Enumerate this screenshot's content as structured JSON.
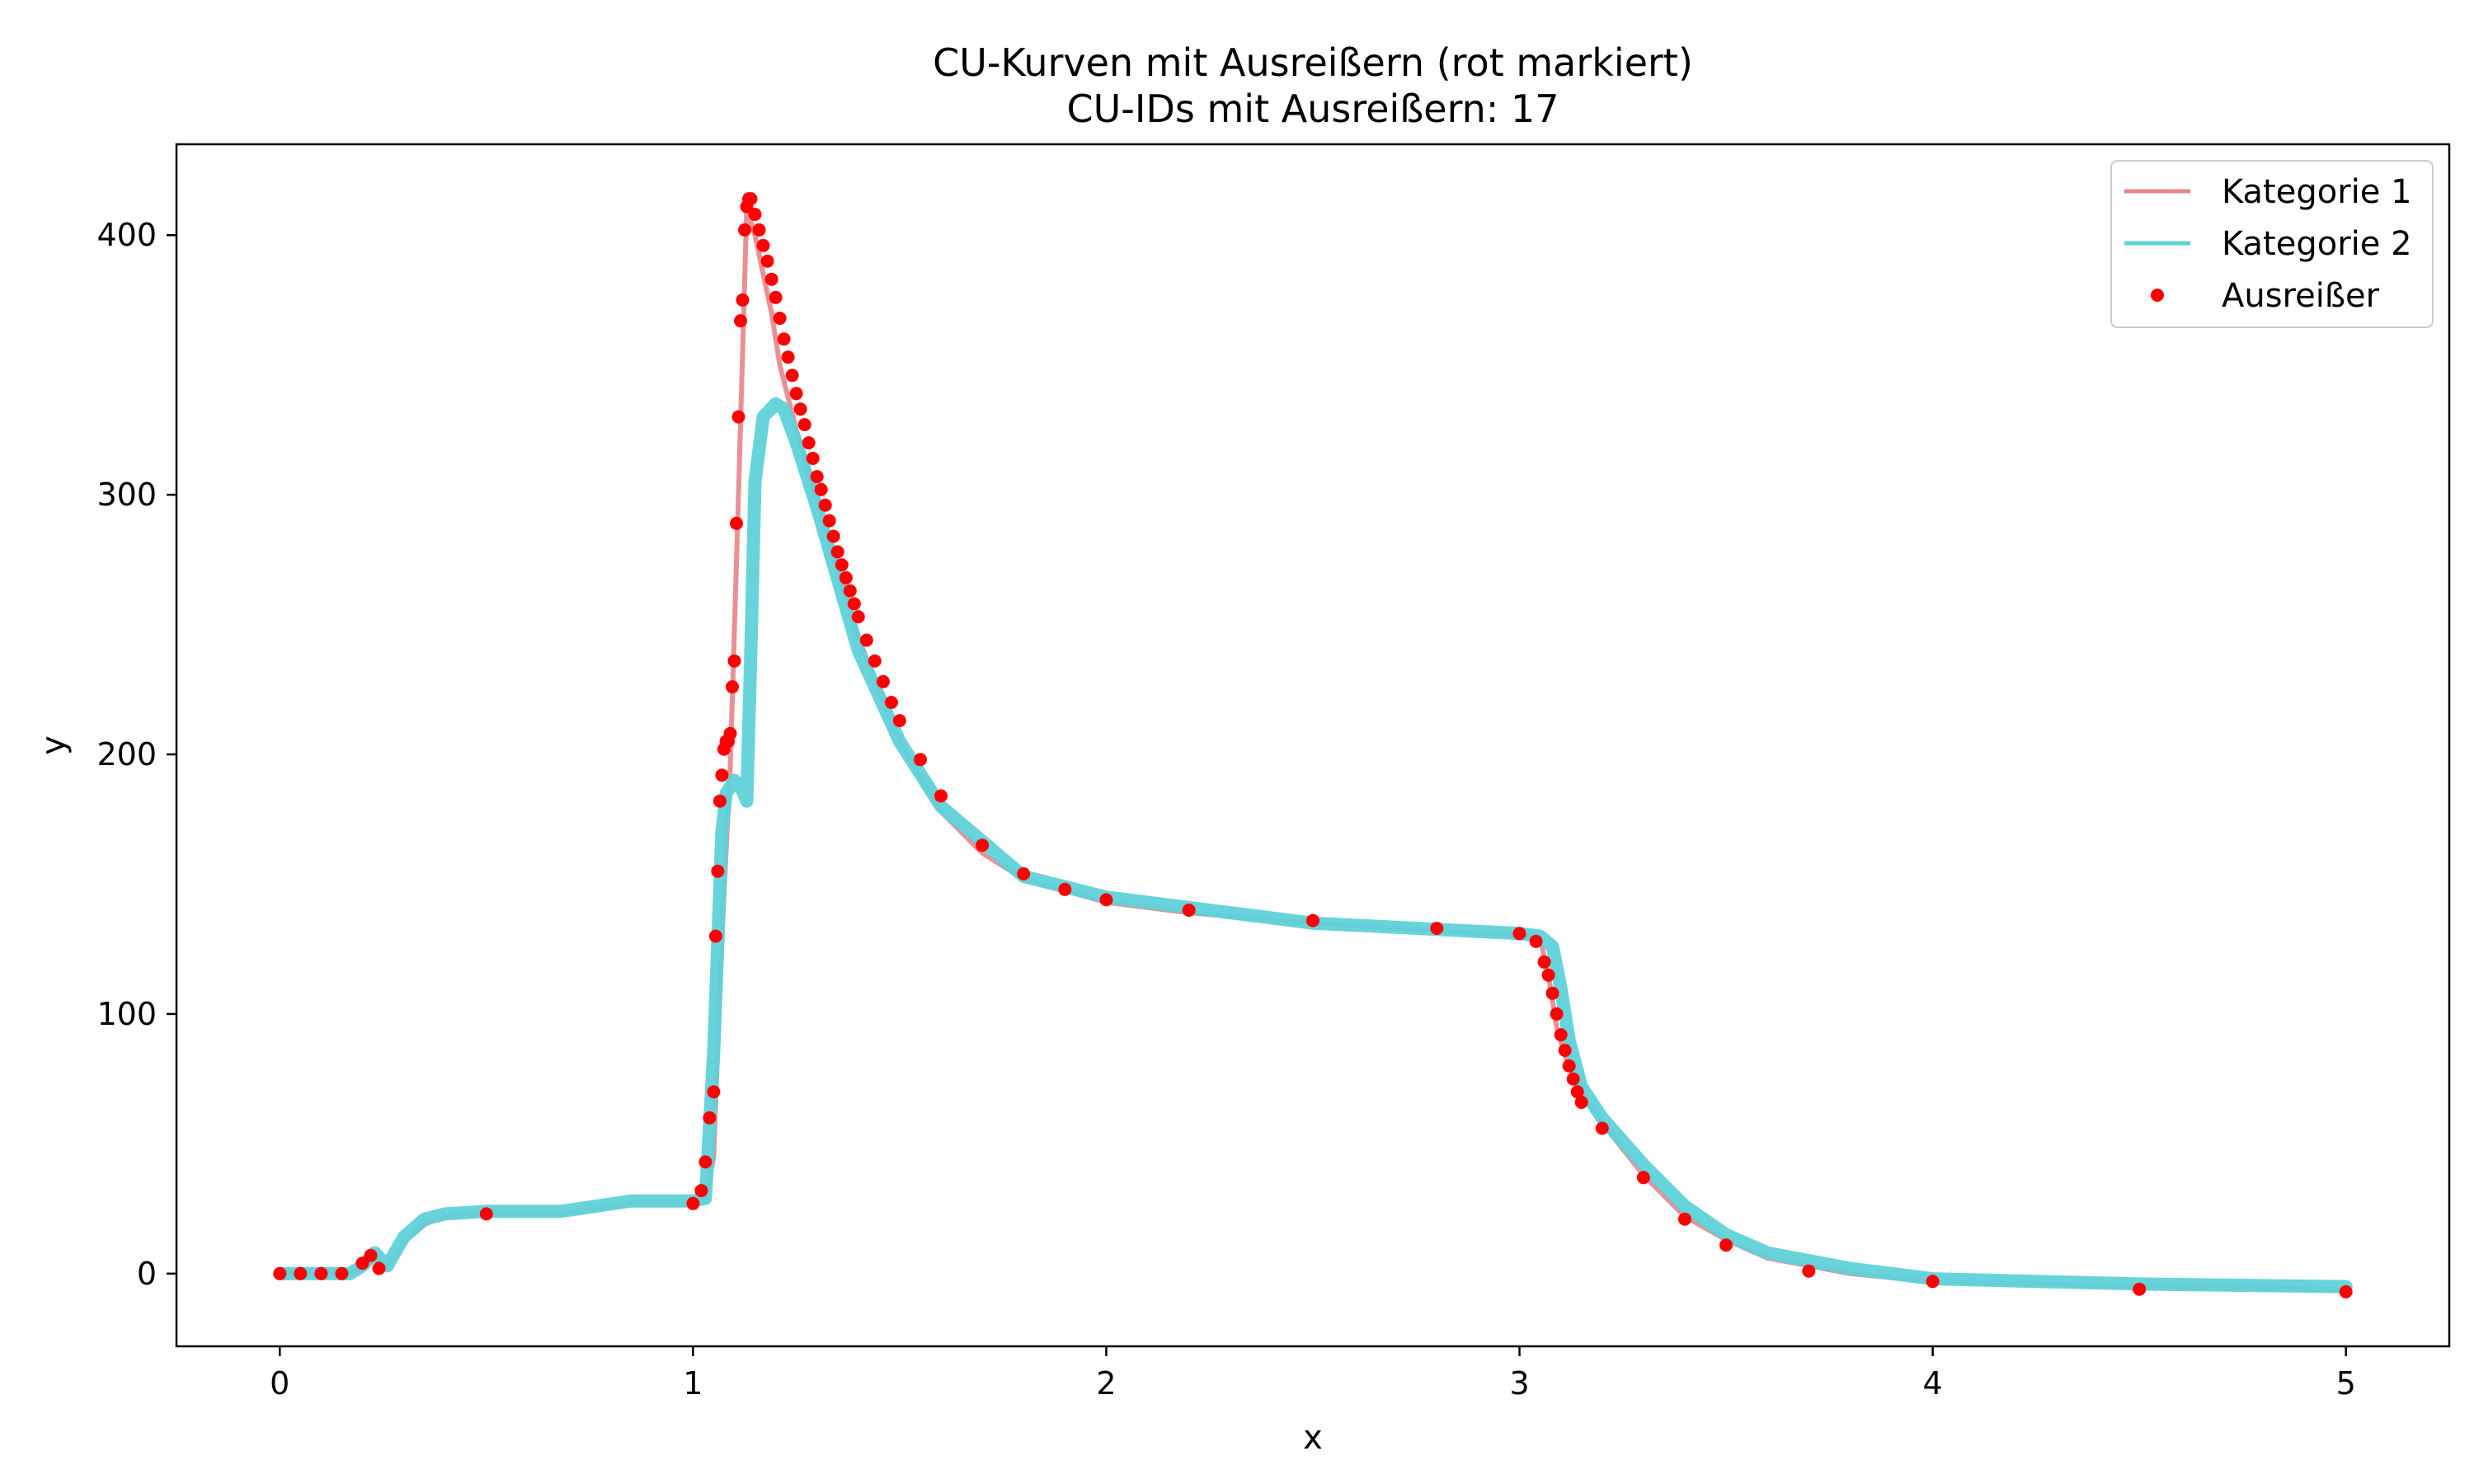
{
  "chart_data": {
    "type": "line",
    "title": "CU-Kurven mit Ausreißern (rot markiert)",
    "subtitle": "CU-IDs mit Ausreißern: 17",
    "xlabel": "x",
    "ylabel": "y",
    "xlim": [
      -0.25,
      5.25
    ],
    "ylim": [
      -28,
      435
    ],
    "xticks": [
      0,
      1,
      2,
      3,
      4,
      5
    ],
    "yticks": [
      0,
      100,
      200,
      300,
      400
    ],
    "grid": false,
    "legend_position": "top-right",
    "colors": {
      "kategorie1": "#e8848a",
      "kategorie2": "#5fd2da",
      "ausreisser": "#ff0000"
    },
    "series": [
      {
        "name": "Kategorie 1",
        "x": [
          0,
          0.1,
          0.17,
          0.2,
          0.23,
          0.26,
          0.3,
          0.35,
          0.4,
          0.5,
          0.68,
          0.85,
          1.0,
          1.03,
          1.05,
          1.07,
          1.09,
          1.11,
          1.13,
          1.15,
          1.17,
          1.19,
          1.21,
          1.25,
          1.3,
          1.35,
          1.4,
          1.5,
          1.6,
          1.7,
          1.8,
          2.0,
          2.2,
          2.5,
          2.8,
          3.0,
          3.05,
          3.07,
          3.09,
          3.11,
          3.13,
          3.15,
          3.2,
          3.3,
          3.4,
          3.5,
          3.6,
          3.8,
          4.0,
          4.5,
          5.0
        ],
        "y": [
          0,
          0,
          0,
          3,
          6,
          2,
          12,
          19,
          22,
          23,
          23,
          27,
          27,
          28,
          45,
          130,
          195,
          300,
          410,
          400,
          385,
          370,
          350,
          325,
          298,
          270,
          245,
          205,
          178,
          162,
          152,
          143,
          139,
          135,
          132,
          130,
          129,
          115,
          95,
          84,
          76,
          70,
          58,
          38,
          22,
          13,
          6,
          0,
          -3,
          -5,
          -6
        ]
      },
      {
        "name": "Kategorie 2",
        "x": [
          0,
          0.1,
          0.17,
          0.2,
          0.23,
          0.26,
          0.3,
          0.35,
          0.4,
          0.5,
          0.68,
          0.85,
          1.0,
          1.03,
          1.05,
          1.07,
          1.08,
          1.1,
          1.12,
          1.13,
          1.14,
          1.15,
          1.17,
          1.2,
          1.22,
          1.25,
          1.3,
          1.4,
          1.5,
          1.6,
          1.8,
          2.0,
          2.5,
          3.0,
          3.05,
          3.08,
          3.1,
          3.12,
          3.15,
          3.2,
          3.3,
          3.4,
          3.5,
          3.6,
          3.8,
          4.0,
          4.5,
          5.0
        ],
        "y": [
          0,
          0,
          0,
          3,
          8,
          3,
          14,
          21,
          23,
          24,
          24,
          28,
          28,
          29,
          85,
          170,
          185,
          190,
          186,
          182,
          240,
          305,
          330,
          335,
          333,
          320,
          295,
          240,
          205,
          180,
          153,
          145,
          135,
          131,
          130,
          126,
          110,
          90,
          72,
          60,
          42,
          26,
          15,
          8,
          2,
          -2,
          -4,
          -5
        ]
      }
    ],
    "outliers": {
      "name": "Ausreißer",
      "x": [
        0,
        0.05,
        0.1,
        0.15,
        0.2,
        0.22,
        0.24,
        0.5,
        1.0,
        1.02,
        1.03,
        1.04,
        1.05,
        1.055,
        1.06,
        1.065,
        1.07,
        1.075,
        1.08,
        1.085,
        1.09,
        1.095,
        1.1,
        1.105,
        1.11,
        1.115,
        1.12,
        1.125,
        1.13,
        1.135,
        1.14,
        1.15,
        1.16,
        1.17,
        1.18,
        1.19,
        1.2,
        1.21,
        1.22,
        1.23,
        1.24,
        1.25,
        1.26,
        1.27,
        1.28,
        1.29,
        1.3,
        1.31,
        1.32,
        1.33,
        1.34,
        1.35,
        1.36,
        1.37,
        1.38,
        1.39,
        1.4,
        1.42,
        1.44,
        1.46,
        1.48,
        1.5,
        1.55,
        1.6,
        1.7,
        1.8,
        1.9,
        2.0,
        2.2,
        2.5,
        2.8,
        3.0,
        3.04,
        3.06,
        3.07,
        3.08,
        3.09,
        3.1,
        3.11,
        3.12,
        3.13,
        3.14,
        3.15,
        3.2,
        3.3,
        3.4,
        3.5,
        3.7,
        4.0,
        4.5,
        5.0
      ],
      "y": [
        0,
        0,
        0,
        0,
        4,
        7,
        2,
        23,
        27,
        32,
        43,
        60,
        70,
        130,
        155,
        182,
        192,
        202,
        205,
        205,
        208,
        226,
        236,
        289,
        330,
        367,
        375,
        402,
        411,
        414,
        414,
        408,
        402,
        396,
        390,
        383,
        376,
        368,
        360,
        353,
        346,
        339,
        333,
        327,
        320,
        314,
        307,
        302,
        296,
        290,
        284,
        278,
        273,
        268,
        263,
        258,
        253,
        244,
        236,
        228,
        220,
        213,
        198,
        184,
        165,
        154,
        148,
        144,
        140,
        136,
        133,
        131,
        128,
        120,
        115,
        108,
        100,
        92,
        86,
        80,
        75,
        70,
        66,
        56,
        37,
        21,
        11,
        1,
        -3,
        -6,
        -7
      ]
    }
  }
}
